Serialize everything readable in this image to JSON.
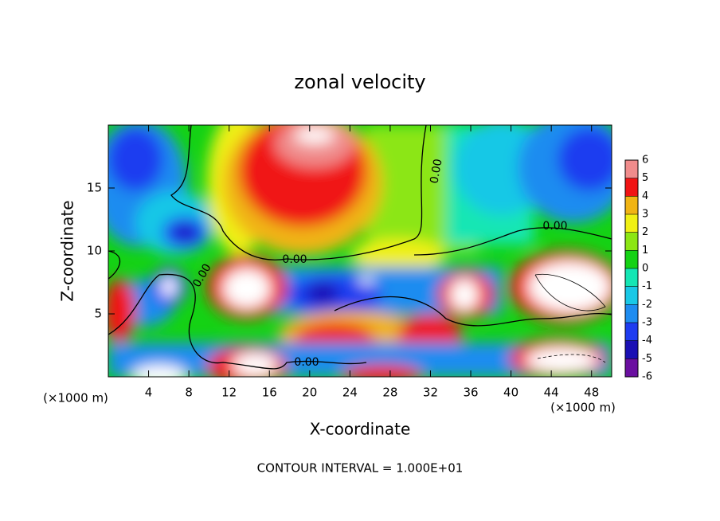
{
  "chart_data": {
    "type": "contour",
    "title": "zonal velocity",
    "x_label": "X-coordinate",
    "y_label": "Z-coordinate",
    "y_unit_label": "(×1000 m)",
    "x_unit_label": "(×1000 m)",
    "xlim": [
      0,
      50
    ],
    "xticks": [
      4,
      8,
      12,
      16,
      20,
      24,
      28,
      32,
      36,
      40,
      44,
      48
    ],
    "ylim": [
      0,
      20
    ],
    "yticks": [
      5,
      10,
      15
    ],
    "colorbar": {
      "ticks": [
        -6,
        -5,
        -4,
        -3,
        -2,
        -1,
        0,
        1,
        2,
        3,
        4,
        5,
        6
      ],
      "colors": [
        "#6a0fa0",
        "#1a10b4",
        "#1e3cf0",
        "#1e8cf0",
        "#19c8e6",
        "#14e6b4",
        "#14d214",
        "#8ce614",
        "#f0f014",
        "#f0b414",
        "#f01414",
        "#f08c8c"
      ]
    },
    "contour_labels": [
      "0.00",
      "0.00",
      "0.00",
      "0.00",
      "0.00"
    ],
    "contour_interval_label": "CONTOUR INTERVAL = 1.000E+01"
  }
}
